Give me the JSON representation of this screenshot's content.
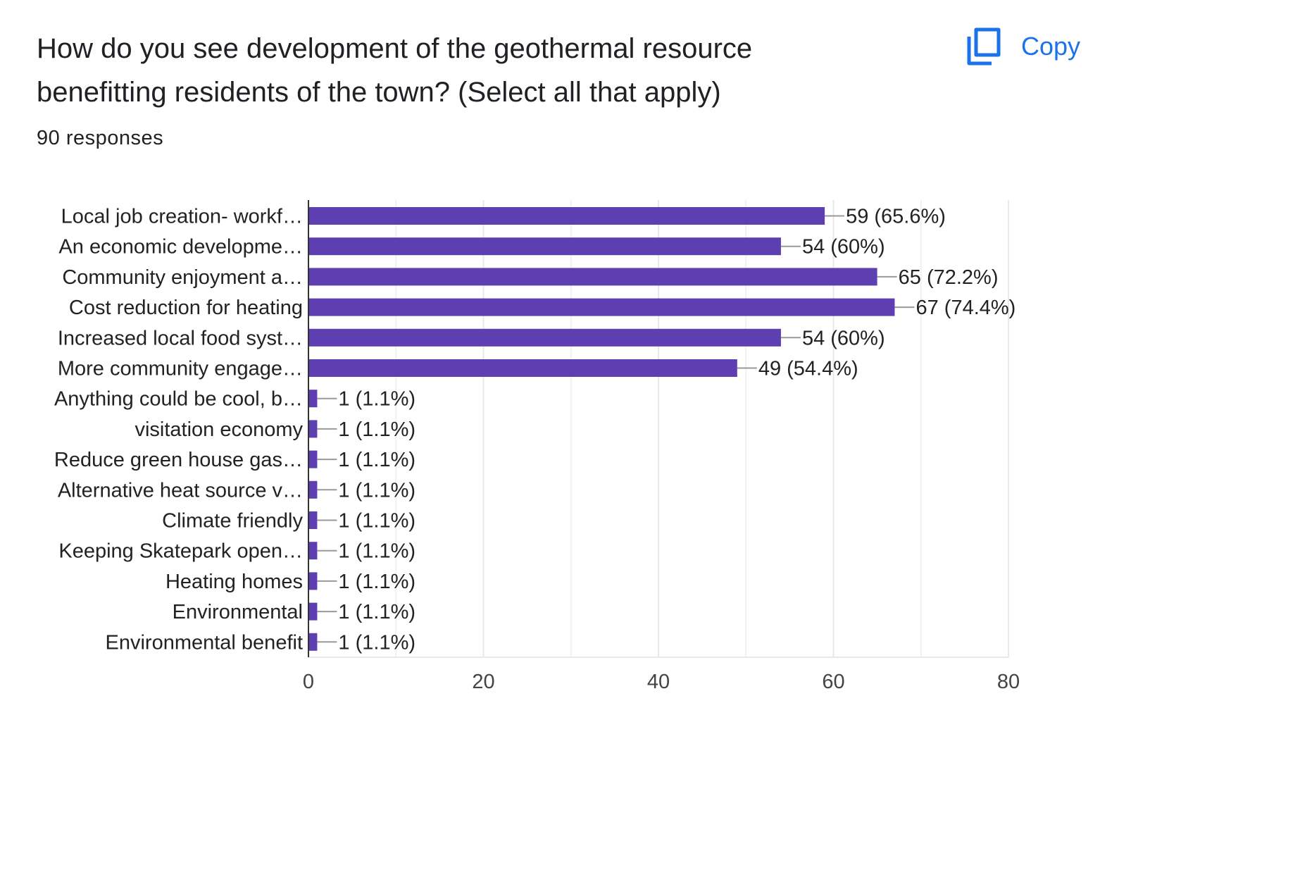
{
  "header": {
    "title": "How do you see development of the geothermal resource benefitting residents of the town?  (Select all that apply)",
    "responses": "90 responses",
    "copy_label": "Copy",
    "copy_icon": "copy-icon"
  },
  "colors": {
    "bar": "#5e3fb1",
    "accent": "#1a73e8",
    "grid": "#e8e8e8"
  },
  "chart_data": {
    "type": "bar",
    "orientation": "horizontal",
    "categories": [
      "Local job creation- workf…",
      "An economic developme…",
      "Community enjoyment a…",
      "Cost reduction for heating",
      "Increased local food syst…",
      "More community engage…",
      "Anything could be cool, b…",
      "visitation economy",
      "Reduce green house gas…",
      "Alternative heat source v…",
      "Climate friendly",
      "Keeping Skatepark open…",
      "Heating homes",
      "Environmental",
      "Environmental benefit"
    ],
    "values": [
      59,
      54,
      65,
      67,
      54,
      49,
      1,
      1,
      1,
      1,
      1,
      1,
      1,
      1,
      1
    ],
    "labels": [
      "59 (65.6%)",
      "54 (60%)",
      "65 (72.2%)",
      "67 (74.4%)",
      "54 (60%)",
      "49 (54.4%)",
      "1 (1.1%)",
      "1 (1.1%)",
      "1 (1.1%)",
      "1 (1.1%)",
      "1 (1.1%)",
      "1 (1.1%)",
      "1 (1.1%)",
      "1 (1.1%)",
      "1 (1.1%)"
    ],
    "xlim": [
      0,
      80
    ],
    "xticks": [
      0,
      20,
      40,
      60,
      80
    ],
    "minor_gridlines": [
      10,
      30,
      50,
      70
    ],
    "title": "How do you see development of the geothermal resource benefitting residents of the town?  (Select all that apply)",
    "xlabel": "",
    "ylabel": ""
  }
}
